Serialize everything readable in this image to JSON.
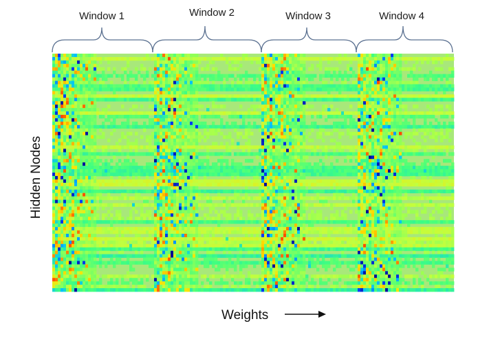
{
  "chart_data": {
    "type": "heatmap",
    "title": "",
    "xlabel": "Weights",
    "ylabel": "Hidden Nodes",
    "windows": [
      "Window 1",
      "Window 2",
      "Window 3",
      "Window 4"
    ],
    "grid": false,
    "legend": "none",
    "colormap": [
      "#00007f",
      "#0040ff",
      "#00c0ff",
      "#40ff80",
      "#c0ff40",
      "#ffe000",
      "#ff8000",
      "#ff2000"
    ],
    "background_color": "#a8e87a",
    "brace_color": "#5a7090"
  }
}
